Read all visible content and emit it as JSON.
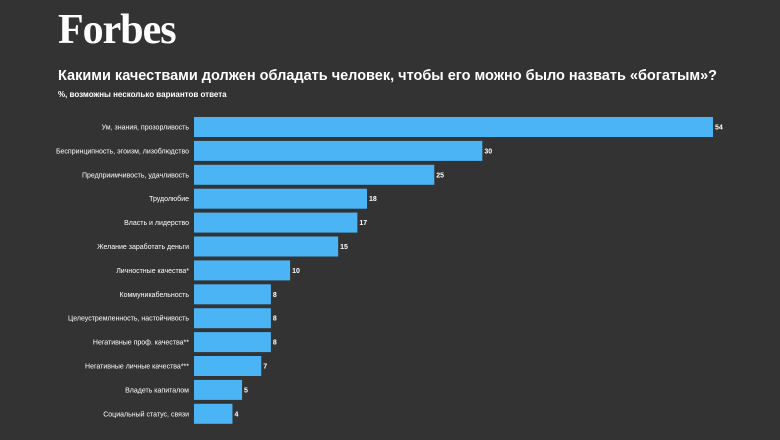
{
  "header": {
    "logo": "Forbes",
    "title": "Какими качествами должен обладать человек, чтобы его можно было назвать «богатым»?",
    "subtitle": "%, возможны несколько вариантов ответа"
  },
  "colors": {
    "background": "#333333",
    "bar": "#4bb4f5",
    "text": "#ffffff"
  },
  "chart_data": {
    "type": "bar",
    "orientation": "horizontal",
    "title": "Какими качествами должен обладать человек, чтобы его можно было назвать «богатым»?",
    "subtitle": "%, возможны несколько вариантов ответа",
    "xlabel": "",
    "ylabel": "",
    "xlim": [
      0,
      54
    ],
    "grid": false,
    "categories": [
      "Ум, знания, прозорливость",
      "Беспринципность, эгоизм, лизоблюдство",
      "Предприимчивость, удачливость",
      "Трудолюбие",
      "Власть и лидерство",
      "Желание заработать деньги",
      "Личностные качества*",
      "Коммуникабельность",
      "Целеустремленность, настойчивость",
      "Негативные проф. качества**",
      "Негативные личные качества***",
      "Владеть капиталом",
      "Социальный статус, связи"
    ],
    "values": [
      54,
      30,
      25,
      18,
      17,
      15,
      10,
      8,
      8,
      8,
      7,
      5,
      4
    ]
  }
}
